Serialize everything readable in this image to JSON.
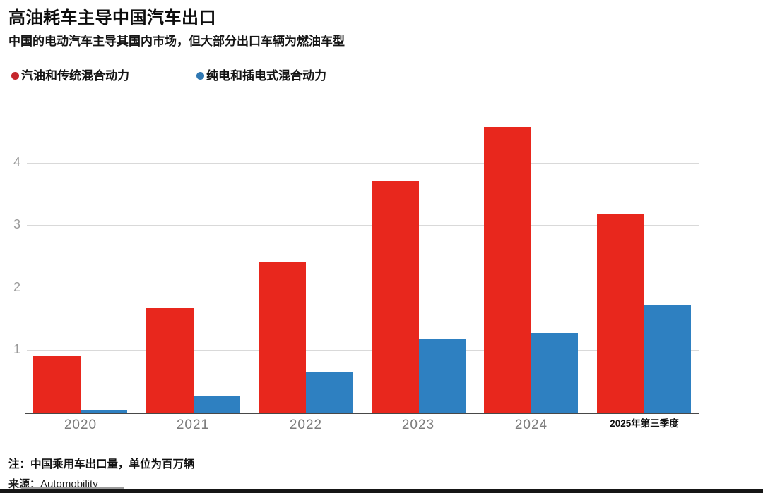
{
  "header": {
    "title": "高油耗车主导中国汽车出口",
    "subtitle": "中国的电动汽车主导其国内市场，但大部分出口车辆为燃油车型"
  },
  "legend": {
    "items": [
      {
        "label": "汽油和传统混合动力",
        "dot_color": "#c5262c"
      },
      {
        "label": "纯电和插电式混合动力",
        "dot_color": "#2f78b3"
      }
    ]
  },
  "chart_data": {
    "type": "bar",
    "categories": [
      "2020",
      "2021",
      "2022",
      "2023",
      "2024",
      "2025年第三季度"
    ],
    "series": [
      {
        "name": "汽油和传统混合动力",
        "color": "#e8271d",
        "values": [
          0.9,
          1.68,
          2.42,
          3.7,
          4.57,
          3.18
        ]
      },
      {
        "name": "纯电和插电式混合动力",
        "color": "#2e80c1",
        "values": [
          0.05,
          0.27,
          0.64,
          1.17,
          1.27,
          1.73
        ]
      }
    ],
    "title": "高油耗车主导中国汽车出口",
    "subtitle": "中国的电动汽车主导其国内市场，但大部分出口车辆为燃油车型",
    "xlabel": "",
    "ylabel": "",
    "yticks": [
      1,
      2,
      3,
      4
    ],
    "ylim": [
      0,
      4.85
    ],
    "grid": "horizontal",
    "legend_position": "top-left",
    "note": "注：中国乘用车出口量，单位为百万辆",
    "source": "来源：Automobility"
  },
  "footer": {
    "note": "注：中国乘用车出口量，单位为百万辆",
    "source_prefix": "来源：",
    "source_name": "Automobility"
  },
  "colors": {
    "gridline": "#d9d9d9",
    "axis_line": "#484848",
    "tick_text": "#9a9a9a",
    "year_text": "#7b7b7b"
  }
}
